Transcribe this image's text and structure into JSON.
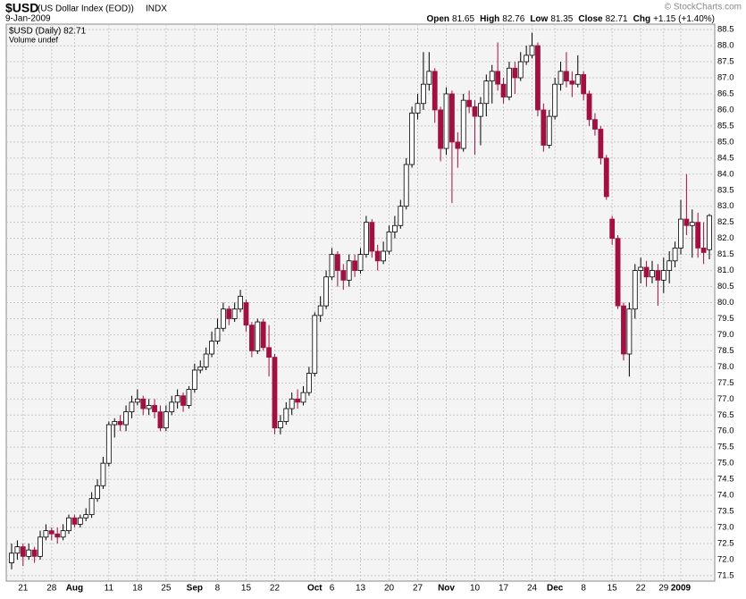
{
  "header": {
    "symbol": "$USD",
    "name": "(US Dollar Index (EOD))",
    "exchange": "INDX",
    "date": "9-Jan-2009",
    "copyright": "© StockCharts.com",
    "quote": [
      {
        "label": "Open",
        "value": "81.65"
      },
      {
        "label": "High",
        "value": "82.76"
      },
      {
        "label": "Low",
        "value": "81.35"
      },
      {
        "label": "Close",
        "value": "82.71"
      },
      {
        "label": "Chg",
        "value": "+1.15 (+1.40%)"
      }
    ],
    "legend": "$USD (Daily) 82.71",
    "volume": "Volume undef"
  },
  "chart_data": {
    "type": "candlestick",
    "up_color": "#ffffff",
    "down_color": "#a01040",
    "edge_color": "#000000",
    "grid": true,
    "categories": [
      null,
      null,
      "21",
      null,
      null,
      null,
      null,
      "28",
      null,
      null,
      null,
      "Aug",
      null,
      null,
      null,
      null,
      null,
      "11",
      null,
      null,
      null,
      null,
      "18",
      null,
      null,
      null,
      null,
      "25",
      null,
      null,
      null,
      null,
      "Sep",
      null,
      null,
      null,
      "8",
      null,
      null,
      null,
      null,
      "15",
      null,
      null,
      null,
      null,
      "22",
      null,
      null,
      null,
      null,
      null,
      null,
      "Oct",
      null,
      null,
      "6",
      null,
      null,
      null,
      null,
      "13",
      null,
      null,
      null,
      null,
      "20",
      null,
      null,
      null,
      null,
      "27",
      null,
      null,
      null,
      null,
      "Nov",
      null,
      null,
      null,
      null,
      "10",
      null,
      null,
      null,
      null,
      "17",
      null,
      null,
      null,
      null,
      "24",
      null,
      null,
      null,
      "Dec",
      null,
      null,
      null,
      null,
      "8",
      null,
      null,
      null,
      null,
      "15",
      null,
      null,
      null,
      null,
      "22",
      null,
      null,
      null,
      "29",
      null,
      null,
      "2009",
      null,
      null,
      null,
      null,
      null
    ],
    "open": [
      71.9,
      72.2,
      72.4,
      72.1,
      72.3,
      72.1,
      72.7,
      72.9,
      72.8,
      72.7,
      72.9,
      73.3,
      73.1,
      73.3,
      73.4,
      73.9,
      74.3,
      75.0,
      76.2,
      76.3,
      76.2,
      76.6,
      76.9,
      77.0,
      76.7,
      76.8,
      76.6,
      76.1,
      76.6,
      76.9,
      77.1,
      76.8,
      77.3,
      77.9,
      78.0,
      78.4,
      78.8,
      79.2,
      79.8,
      79.5,
      79.8,
      80.0,
      79.3,
      78.5,
      79.4,
      78.6,
      78.3,
      76.1,
      76.3,
      76.7,
      77.0,
      76.9,
      77.2,
      77.8,
      79.6,
      79.9,
      80.8,
      81.5,
      81.0,
      80.7,
      81.3,
      81.0,
      81.5,
      82.5,
      81.6,
      81.3,
      81.6,
      82.2,
      82.4,
      83.0,
      84.3,
      85.9,
      86.2,
      86.8,
      87.2,
      86.0,
      84.8,
      86.5,
      85.0,
      84.8,
      86.3,
      86.1,
      85.8,
      86.2,
      86.9,
      87.2,
      86.8,
      86.4,
      87.3,
      87.0,
      87.5,
      87.7,
      88.0,
      86.0,
      84.9,
      85.8,
      86.8,
      87.2,
      86.9,
      86.8,
      87.1,
      86.5,
      85.7,
      85.4,
      84.5,
      82.6,
      82.0,
      79.9,
      78.4,
      79.8,
      81.0,
      81.1,
      80.8,
      81.0,
      80.7,
      81.0,
      81.3,
      81.7,
      82.6,
      82.4,
      82.5,
      81.7,
      81.65
    ],
    "high": [
      72.5,
      72.6,
      72.5,
      72.5,
      72.4,
      72.9,
      73.1,
      73.0,
      73.0,
      73.1,
      73.4,
      73.4,
      73.4,
      73.6,
      74.1,
      74.5,
      75.2,
      76.3,
      76.4,
      76.5,
      76.8,
      77.1,
      77.3,
      77.1,
      77.0,
      77.0,
      76.8,
      76.8,
      77.1,
      77.3,
      77.2,
      77.4,
      78.1,
      78.2,
      78.6,
      79.1,
      79.5,
      80.0,
      79.9,
      80.0,
      80.4,
      80.1,
      79.4,
      79.5,
      79.5,
      79.3,
      78.4,
      76.5,
      76.9,
      77.2,
      77.3,
      77.4,
      78.0,
      79.7,
      80.2,
      81.0,
      81.7,
      81.6,
      81.2,
      81.5,
      81.5,
      81.7,
      82.7,
      82.6,
      81.8,
      81.9,
      82.4,
      82.7,
      83.2,
      84.5,
      86.1,
      86.5,
      87.8,
      87.8,
      87.3,
      86.1,
      86.7,
      86.6,
      85.3,
      86.5,
      86.6,
      86.3,
      86.4,
      87.1,
      87.4,
      88.1,
      87.0,
      87.5,
      87.5,
      87.8,
      88.0,
      88.4,
      88.1,
      86.2,
      86.0,
      87.0,
      87.5,
      87.8,
      87.2,
      87.7,
      87.2,
      86.6,
      85.9,
      85.5,
      84.6,
      82.7,
      82.1,
      80.0,
      80.0,
      81.2,
      81.4,
      81.3,
      81.3,
      81.2,
      81.4,
      81.6,
      81.9,
      83.2,
      84.0,
      82.9,
      82.8,
      82.5,
      82.76
    ],
    "low": [
      71.7,
      72.0,
      71.8,
      72.0,
      71.9,
      72.0,
      72.6,
      72.6,
      72.5,
      72.6,
      72.8,
      73.0,
      73.0,
      73.2,
      73.3,
      73.8,
      74.2,
      74.9,
      75.8,
      76.0,
      76.0,
      76.4,
      76.8,
      76.5,
      76.5,
      76.4,
      76.0,
      76.0,
      76.5,
      76.7,
      76.6,
      76.7,
      77.2,
      77.8,
      77.9,
      78.3,
      78.7,
      79.1,
      79.3,
      79.4,
      79.7,
      79.1,
      78.3,
      78.4,
      78.5,
      77.7,
      75.9,
      75.9,
      76.2,
      76.5,
      76.7,
      76.8,
      77.1,
      77.7,
      79.4,
      79.8,
      80.7,
      80.5,
      80.4,
      80.5,
      80.8,
      80.9,
      81.4,
      81.4,
      81.0,
      81.2,
      81.5,
      82.0,
      82.3,
      82.9,
      84.2,
      85.7,
      86.0,
      86.6,
      85.6,
      84.4,
      84.6,
      83.1,
      84.2,
      84.7,
      85.9,
      84.6,
      84.9,
      85.8,
      86.2,
      86.6,
      86.2,
      86.3,
      86.5,
      86.9,
      87.4,
      87.6,
      85.8,
      84.7,
      84.8,
      85.7,
      86.6,
      86.7,
      86.4,
      86.7,
      86.3,
      85.5,
      85.2,
      84.3,
      83.2,
      81.8,
      79.8,
      78.2,
      77.7,
      79.5,
      80.6,
      80.5,
      80.6,
      79.9,
      80.3,
      80.6,
      81.1,
      81.5,
      82.1,
      81.4,
      81.4,
      81.2,
      81.35
    ],
    "close": [
      72.2,
      72.4,
      72.1,
      72.3,
      72.1,
      72.7,
      72.9,
      72.8,
      72.7,
      72.9,
      73.3,
      73.1,
      73.3,
      73.4,
      73.9,
      74.3,
      75.0,
      76.2,
      76.3,
      76.2,
      76.6,
      76.9,
      77.0,
      76.7,
      76.8,
      76.6,
      76.1,
      76.6,
      76.9,
      77.1,
      76.8,
      77.3,
      77.9,
      78.0,
      78.4,
      78.8,
      79.2,
      79.8,
      79.5,
      79.8,
      80.2,
      79.3,
      78.5,
      79.4,
      78.6,
      78.3,
      76.1,
      76.3,
      76.7,
      77.0,
      76.9,
      77.2,
      77.8,
      79.6,
      79.9,
      80.8,
      81.5,
      81.0,
      80.7,
      81.3,
      81.0,
      81.5,
      82.5,
      81.6,
      81.3,
      81.6,
      82.2,
      82.4,
      83.0,
      84.3,
      85.9,
      86.2,
      86.8,
      87.2,
      86.0,
      84.8,
      86.5,
      85.0,
      84.8,
      86.3,
      86.1,
      85.8,
      86.2,
      86.9,
      87.2,
      86.8,
      86.4,
      87.3,
      87.0,
      87.5,
      87.7,
      88.0,
      86.0,
      84.9,
      85.8,
      86.8,
      87.2,
      86.9,
      86.8,
      87.1,
      86.5,
      85.7,
      85.4,
      84.5,
      83.3,
      82.0,
      79.9,
      78.4,
      79.8,
      81.0,
      81.1,
      80.8,
      81.0,
      80.7,
      81.0,
      81.3,
      81.7,
      82.6,
      82.4,
      82.5,
      81.7,
      81.56,
      82.71
    ],
    "ylim": [
      71.33,
      88.67
    ],
    "yticks": [
      71.5,
      {
        "value": 72,
        "label": "72.0"
      },
      72.5,
      {
        "value": 73,
        "label": "73.0"
      },
      73.5,
      {
        "value": 74,
        "label": "74.0"
      },
      74.5,
      {
        "value": 75,
        "label": "75.0"
      },
      75.5,
      {
        "value": 76,
        "label": "76.0"
      },
      76.5,
      {
        "value": 77,
        "label": "77.0"
      },
      77.5,
      {
        "value": 78,
        "label": "78.0"
      },
      78.5,
      {
        "value": 79,
        "label": "79.0"
      },
      79.5,
      {
        "value": 80,
        "label": "80.0"
      },
      80.5,
      {
        "value": 81,
        "label": "81.0"
      },
      81.5,
      {
        "value": 82,
        "label": "82.0"
      },
      82.5,
      {
        "value": 83,
        "label": "83.0"
      },
      83.5,
      {
        "value": 84,
        "label": "84.0"
      },
      84.5,
      {
        "value": 85,
        "label": "85.0"
      },
      85.5,
      {
        "value": 86,
        "label": "86.0"
      },
      86.5,
      {
        "value": 87,
        "label": "87.0"
      },
      87.5,
      {
        "value": 88,
        "label": "88.0"
      },
      88.5
    ]
  }
}
